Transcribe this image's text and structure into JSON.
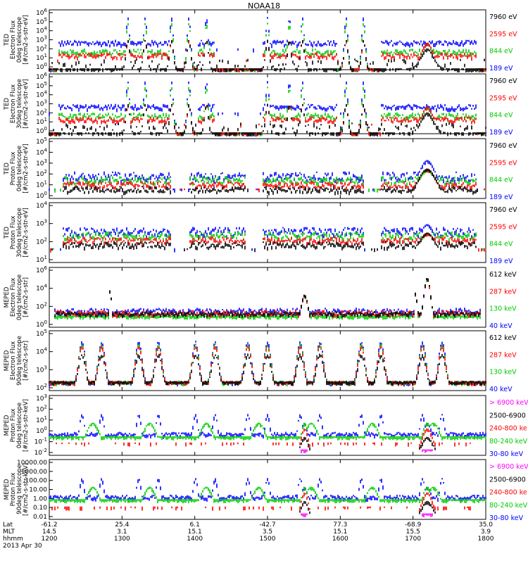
{
  "title": "NOAA18",
  "date_label": "2013 Apr 30",
  "colors": {
    "blue": "#0000ff",
    "red": "#ff0000",
    "green": "#00cc00",
    "black": "#000000",
    "magenta": "#ff00ff"
  },
  "chart_data": [
    {
      "type": "line",
      "ylabel": [
        "TED",
        "Electron Flux",
        "0deg telescope",
        "[#/cm2-s-str-eV]"
      ],
      "yticks": [
        "10^6",
        "10^5",
        "10^4",
        "10^3",
        "10^2",
        "10^1",
        "10^0"
      ],
      "legend": [
        {
          "name": "7960 eV",
          "color": "#000000"
        },
        {
          "name": "2595 eV",
          "color": "#ff0000"
        },
        {
          "name": "844 eV",
          "color": "#00cc00"
        },
        {
          "name": "189 eV",
          "color": "#0000ff"
        }
      ],
      "profile": "ted_e"
    },
    {
      "type": "line",
      "ylabel": [
        "TED",
        "Electron Flux",
        "30deg telescope",
        "[#/cm2-s-str-eV]"
      ],
      "yticks": [
        "10^6",
        "10^5",
        "10^4",
        "10^3",
        "10^2",
        "10^1",
        "10^0"
      ],
      "legend": [
        {
          "name": "7960 eV",
          "color": "#000000"
        },
        {
          "name": "2595 eV",
          "color": "#ff0000"
        },
        {
          "name": "844 eV",
          "color": "#00cc00"
        },
        {
          "name": "189 eV",
          "color": "#0000ff"
        }
      ],
      "profile": "ted_e"
    },
    {
      "type": "line",
      "ylabel": [
        "TED",
        "Proton Flux",
        "0deg telescope",
        "[#/cm2-s-str-eV]"
      ],
      "yticks": [
        "10^5",
        "10^4",
        "10^3",
        "10^2",
        "10^1",
        "10^0"
      ],
      "legend": [
        {
          "name": "7960 eV",
          "color": "#000000"
        },
        {
          "name": "2595 eV",
          "color": "#ff0000"
        },
        {
          "name": "844 eV",
          "color": "#00cc00"
        },
        {
          "name": "189 eV",
          "color": "#0000ff"
        }
      ],
      "profile": "ted_p"
    },
    {
      "type": "line",
      "ylabel": [
        "TED",
        "Proton Flux",
        "30deg telescope",
        "[#/cm2-s-str-eV]"
      ],
      "yticks": [
        "10^4",
        "10^3",
        "10^2",
        "10^1"
      ],
      "legend": [
        {
          "name": "7960 eV",
          "color": "#000000"
        },
        {
          "name": "2595 eV",
          "color": "#ff0000"
        },
        {
          "name": "844 eV",
          "color": "#00cc00"
        },
        {
          "name": "189 eV",
          "color": "#0000ff"
        }
      ],
      "profile": "ted_p2"
    },
    {
      "type": "line",
      "ylabel": [
        "MEPED",
        "Electron Flux",
        "0deg telescope",
        "[#/cm2-s-str]"
      ],
      "yticks": [
        "10^6",
        "10^4",
        "10^2",
        "10^0"
      ],
      "legend": [
        {
          "name": "612 keV",
          "color": "#000000"
        },
        {
          "name": "287 keV",
          "color": "#ff0000"
        },
        {
          "name": "130 keV",
          "color": "#00cc00"
        },
        {
          "name": "40 keV",
          "color": "#0000ff"
        }
      ],
      "profile": "mep_e0"
    },
    {
      "type": "line",
      "ylabel": [
        "MEPED",
        "Electron Flux",
        "90deg telescope",
        "[#/cm2-s-str]"
      ],
      "yticks": [
        "10^5",
        "10^4",
        "10^3",
        "10^2"
      ],
      "legend": [
        {
          "name": "612 keV",
          "color": "#000000"
        },
        {
          "name": "287 keV",
          "color": "#ff0000"
        },
        {
          "name": "130 keV",
          "color": "#00cc00"
        },
        {
          "name": "40 keV",
          "color": "#0000ff"
        }
      ],
      "profile": "mep_e90"
    },
    {
      "type": "line",
      "ylabel": [
        "MEPED",
        "Proton Flux",
        "0deg telescope",
        "[#/cm2-s-str-keV]"
      ],
      "yticks": [
        "10^3",
        "10^2",
        "10^1",
        "10^0",
        "10^-1",
        "10^-2"
      ],
      "legend": [
        {
          "name": "> 6900 keV",
          "color": "#ff00ff"
        },
        {
          "name": "2500-6900",
          "color": "#000000"
        },
        {
          "name": "240-800 ke",
          "color": "#ff0000"
        },
        {
          "name": "80-240 keV",
          "color": "#00cc00"
        },
        {
          "name": "30-80 keV",
          "color": "#0000ff"
        }
      ],
      "profile": "mep_p0"
    },
    {
      "type": "line",
      "ylabel": [
        "MEPED",
        "Proton Flux",
        "90deg telescope",
        "[#/cm2-s-str-keV]"
      ],
      "yticks": [
        "10000.00",
        "1000.00",
        "100.00",
        "10.00",
        "1.00",
        "0.10",
        "0.01"
      ],
      "legend": [
        {
          "name": "> 6900 keV",
          "color": "#ff00ff"
        },
        {
          "name": "2500-6900",
          "color": "#000000"
        },
        {
          "name": "240-800 ke",
          "color": "#ff0000"
        },
        {
          "name": "80-240 keV",
          "color": "#00cc00"
        },
        {
          "name": "30-80 keV",
          "color": "#0000ff"
        }
      ],
      "profile": "mep_p90"
    }
  ],
  "x_axis": {
    "row_labels": [
      "Lat",
      "MLT",
      "hhmm"
    ],
    "ticks": [
      {
        "lat": "-61.2",
        "mlt": "14.5",
        "time": "1200"
      },
      {
        "lat": "25.4",
        "mlt": "3.1",
        "time": "1300"
      },
      {
        "lat": "6.1",
        "mlt": "15.1",
        "time": "1400"
      },
      {
        "lat": "-42.7",
        "mlt": "3.5",
        "time": "1500"
      },
      {
        "lat": "77.3",
        "mlt": "15.1",
        "time": "1600"
      },
      {
        "lat": "-68.9",
        "mlt": "15.5",
        "time": "1700"
      },
      {
        "lat": "35.0",
        "mlt": "3.9",
        "time": "1800"
      }
    ],
    "range": [
      1200,
      1800
    ]
  }
}
